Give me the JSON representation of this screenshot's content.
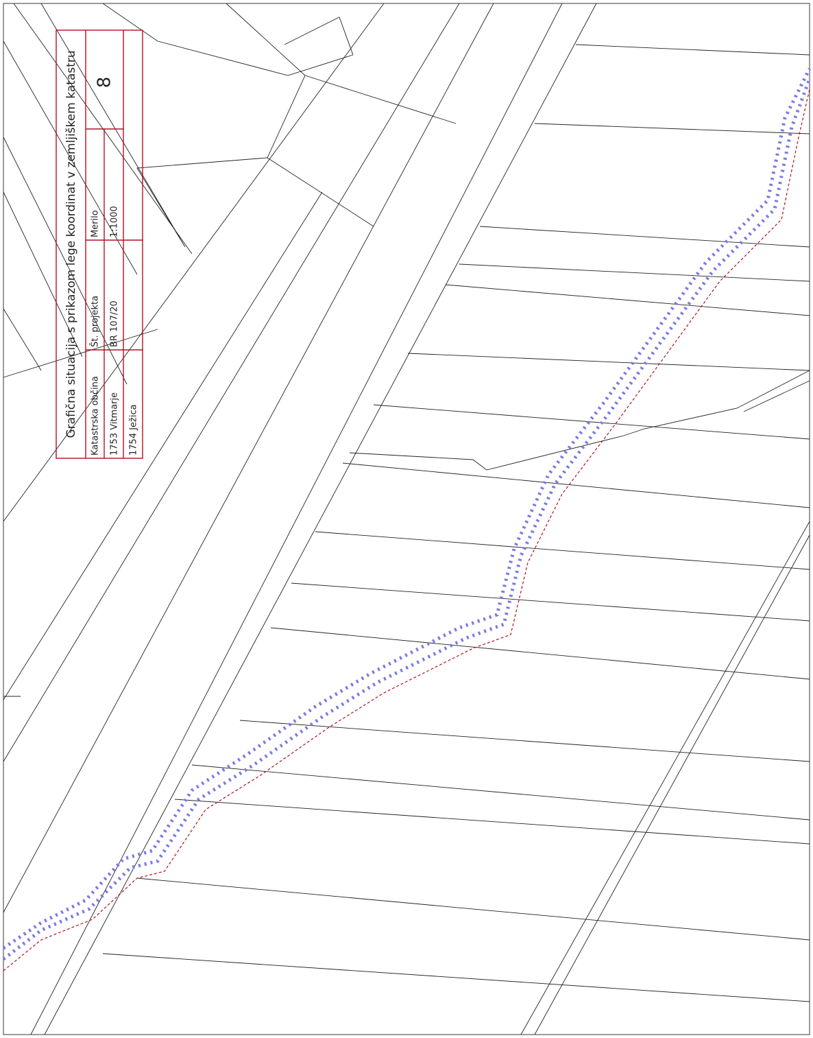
{
  "title_block": {
    "title": "Grafična situacija s prikazom lege koordinat v zemljiškem katastru",
    "sheet": "8",
    "scale_label": "Merilo",
    "scale": "1:1000",
    "project_label": "Št. projekta",
    "project": "BR 107/20",
    "municipality_label": "Katastrska občina",
    "municipalities": [
      "1753 Vitmarje",
      "1754 Ježica"
    ]
  }
}
